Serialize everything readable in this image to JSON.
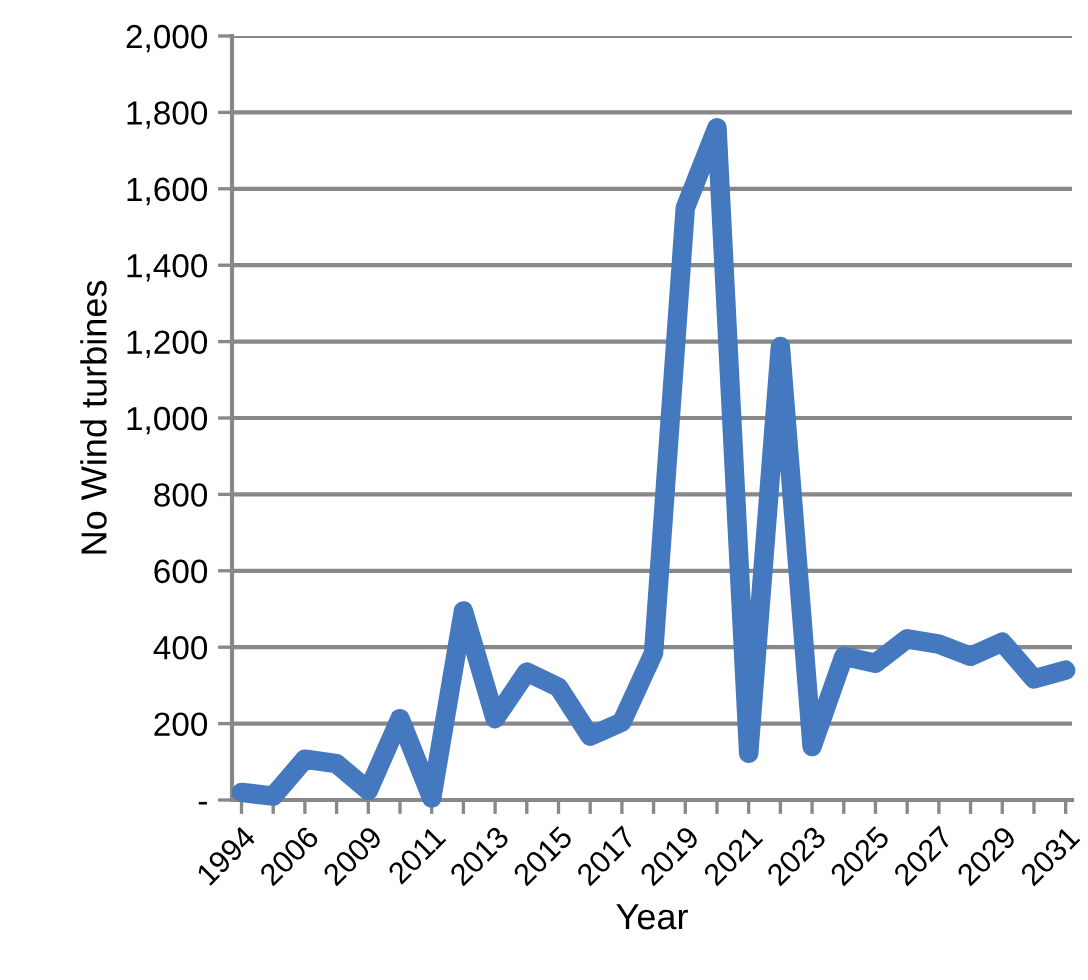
{
  "chart_data": {
    "type": "line",
    "xlabel": "Year",
    "ylabel": "No Wind turbines",
    "categories": [
      "1994",
      null,
      "2006",
      null,
      "2009",
      null,
      "2011",
      null,
      "2013",
      null,
      "2015",
      null,
      "2017",
      null,
      "2019",
      null,
      "2021",
      null,
      "2023",
      null,
      "2025",
      null,
      "2027",
      null,
      "2029",
      null,
      "2031"
    ],
    "series": [
      {
        "color": "#4479c0",
        "values": [
          20,
          10,
          107,
          95,
          25,
          213,
          5,
          495,
          213,
          335,
          295,
          167,
          204,
          385,
          1550,
          1760,
          122,
          1187,
          140,
          376,
          358,
          422,
          408,
          376,
          413,
          317,
          340
        ]
      }
    ],
    "ylim": [
      0,
      2000
    ],
    "yticks": [
      {
        "value": 0,
        "label": "-"
      },
      {
        "value": 200,
        "label": "200"
      },
      {
        "value": 400,
        "label": "400"
      },
      {
        "value": 600,
        "label": "600"
      },
      {
        "value": 800,
        "label": "800"
      },
      {
        "value": 1000,
        "label": "1,000"
      },
      {
        "value": 1200,
        "label": "1,200"
      },
      {
        "value": 1400,
        "label": "1,400"
      },
      {
        "value": 1600,
        "label": "1,600"
      },
      {
        "value": 1800,
        "label": "1,800"
      },
      {
        "value": 2000,
        "label": "2,000"
      }
    ],
    "grid": "y",
    "marker": "none",
    "line_style": "solid"
  }
}
